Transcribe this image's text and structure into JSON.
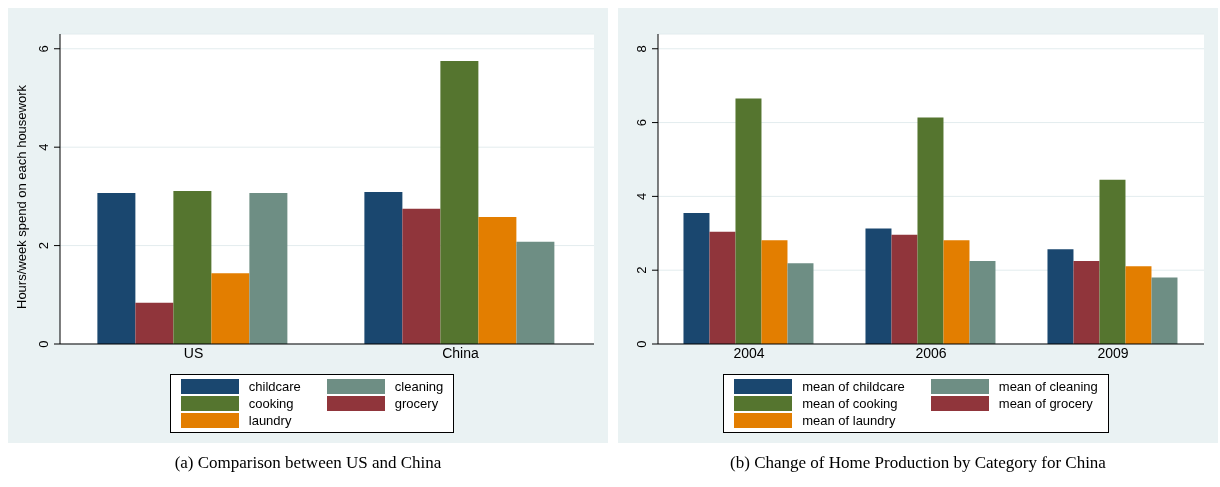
{
  "chart_data": [
    {
      "type": "bar",
      "title": "(a)  Comparison between US and China",
      "ylabel": "Hours/week spend on each housework",
      "categories": [
        "US",
        "China"
      ],
      "series": [
        {
          "name": "childcare",
          "color": "#1a476f",
          "values": [
            3.07,
            3.09
          ]
        },
        {
          "name": "grocery",
          "color": "#90353b",
          "values": [
            0.84,
            2.75
          ]
        },
        {
          "name": "cooking",
          "color": "#55752f",
          "values": [
            3.11,
            5.75
          ]
        },
        {
          "name": "laundry",
          "color": "#e37e00",
          "values": [
            1.44,
            2.58
          ]
        },
        {
          "name": "cleaning",
          "color": "#6e8e84",
          "values": [
            3.07,
            2.08
          ]
        }
      ],
      "ylim": [
        0,
        6.3
      ],
      "yticks": [
        0,
        2,
        4,
        6
      ],
      "grid": "y",
      "legend": "bottom"
    },
    {
      "type": "bar",
      "title": "(b)  Change of Home Production by Category for China",
      "categories": [
        "2004",
        "2006",
        "2009"
      ],
      "series": [
        {
          "name": "mean of childcare",
          "color": "#1a476f",
          "values": [
            3.55,
            3.13,
            2.57
          ]
        },
        {
          "name": "mean of grocery",
          "color": "#90353b",
          "values": [
            3.04,
            2.96,
            2.25
          ]
        },
        {
          "name": "mean of cooking",
          "color": "#55752f",
          "values": [
            6.65,
            6.14,
            4.45
          ]
        },
        {
          "name": "mean of laundry",
          "color": "#e37e00",
          "values": [
            2.81,
            2.81,
            2.11
          ]
        },
        {
          "name": "mean of cleaning",
          "color": "#6e8e84",
          "values": [
            2.19,
            2.25,
            1.8
          ]
        }
      ],
      "ylim": [
        0,
        8.4
      ],
      "yticks": [
        0,
        2,
        4,
        6,
        8
      ],
      "grid": "y",
      "legend": "bottom"
    }
  ]
}
